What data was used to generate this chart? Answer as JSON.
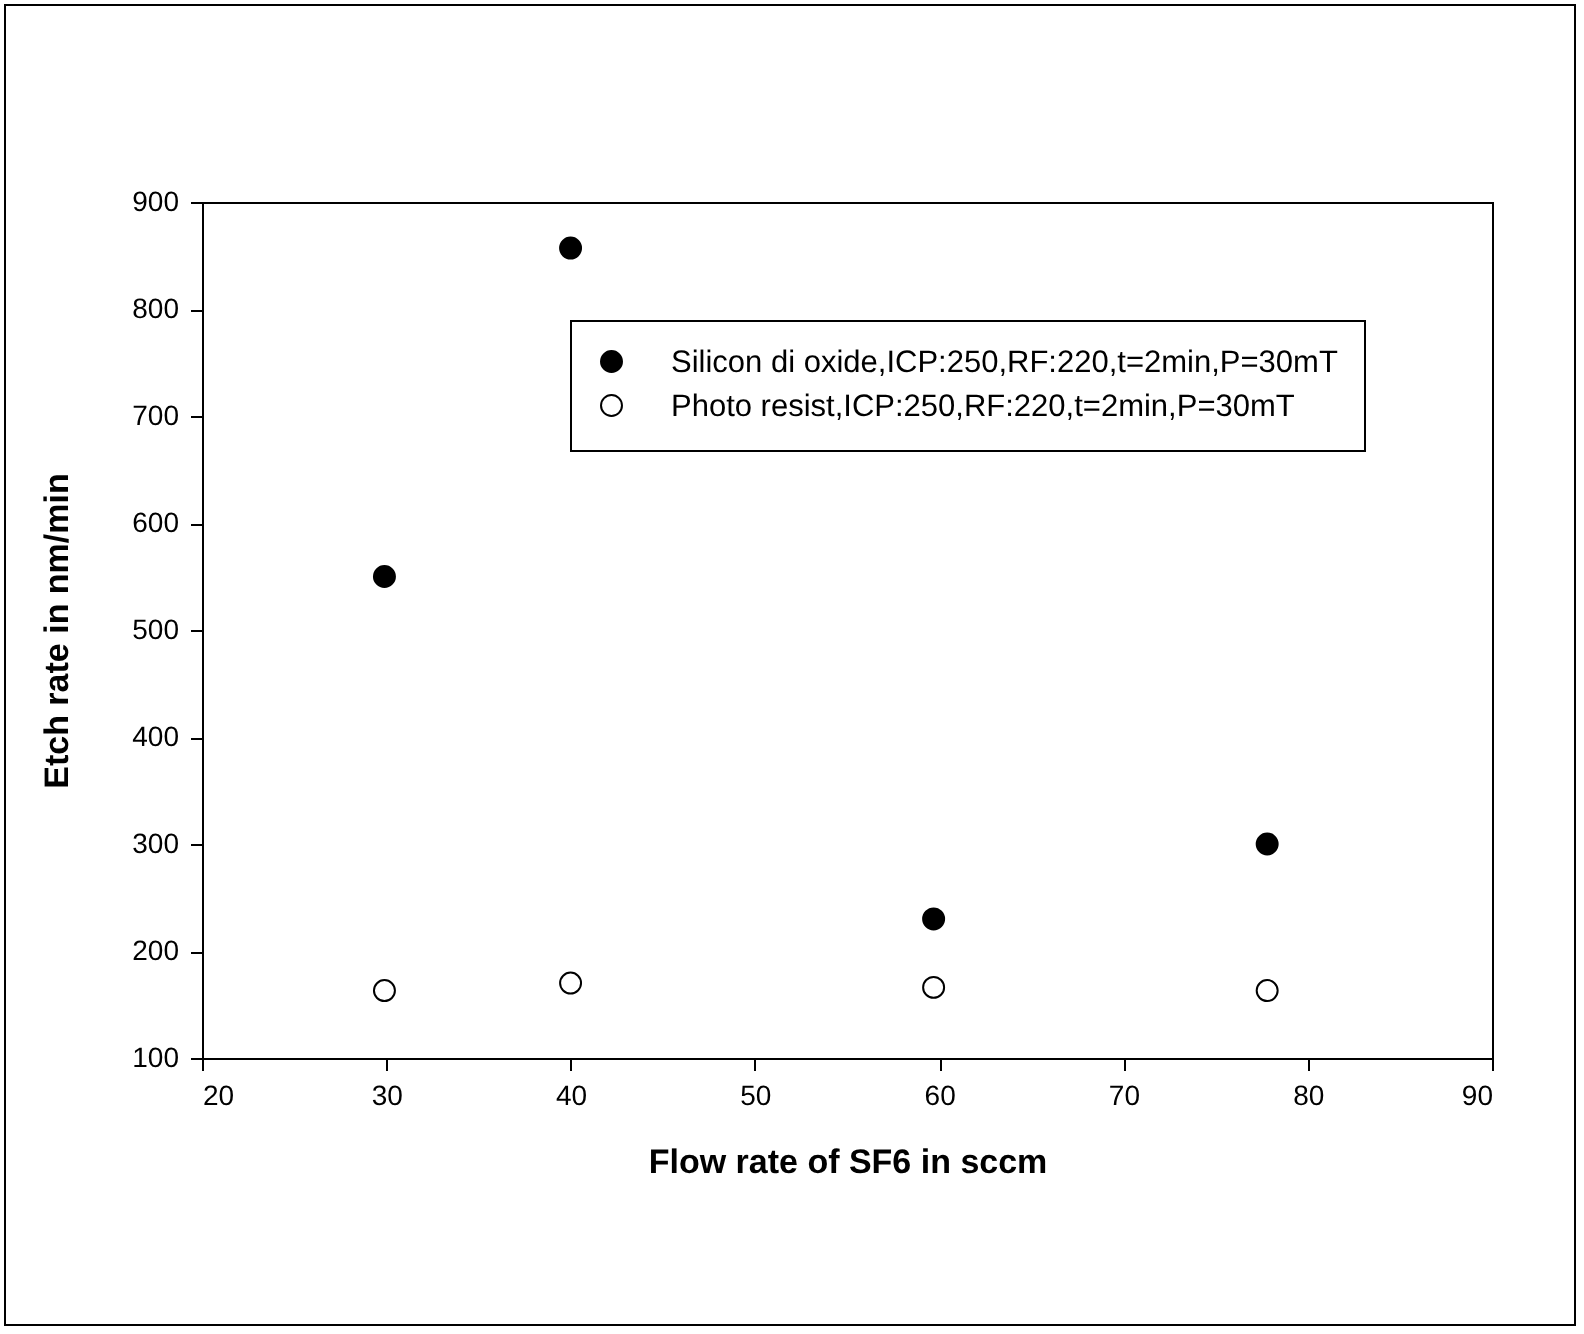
{
  "chart_data": {
    "type": "scatter",
    "xlabel": "Flow rate of SF6 in sccm",
    "ylabel": "Etch rate in nm/min",
    "x": [
      29.9,
      40,
      59.7,
      77.8
    ],
    "series": [
      {
        "name": "Silicon di oxide,ICP:250,RF:220,t=2min,P=30mT",
        "color": "#000000",
        "values": [
          550,
          857,
          230,
          300
        ]
      },
      {
        "name": "Photo resist,ICP:250,RF:220,t=2min,P=30mT",
        "color": "#ffffff",
        "values": [
          163,
          170,
          166,
          163
        ]
      }
    ],
    "xlim": [
      20,
      90
    ],
    "xticks": [
      20,
      30,
      40,
      50,
      60,
      70,
      80,
      90
    ],
    "ylim": [
      100,
      900
    ],
    "yticks": [
      100,
      200,
      300,
      400,
      500,
      600,
      700,
      800,
      900
    ],
    "grid": false,
    "legend": "top right",
    "marker": "circle"
  }
}
